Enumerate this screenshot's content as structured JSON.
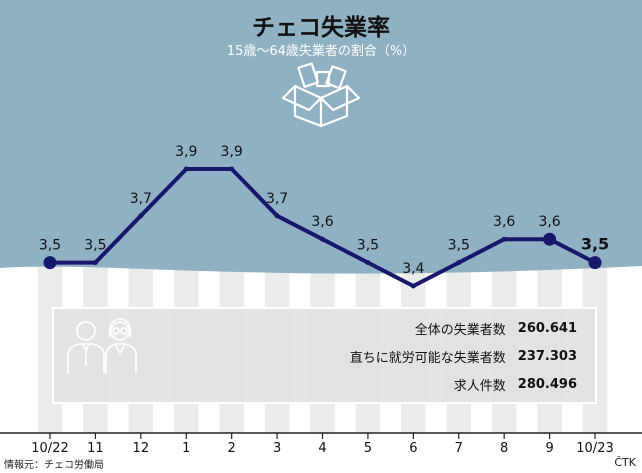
{
  "title": "チェコ失業率",
  "subtitle": "15歳～64歳失業者の割合（%）",
  "source": "情報元：チェコ労働局",
  "agency": "ČTK",
  "stats": [
    {
      "label": "全体の失業者数",
      "value": "260.641"
    },
    {
      "label": "直ちに就労可能な失業者数",
      "value": "237.303"
    },
    {
      "label": "求人件数",
      "value": "280.496"
    }
  ],
  "icons": [
    "box-icon",
    "people-icon"
  ],
  "colors": {
    "band": "#8fb1c3",
    "line": "#17176b",
    "columns": "#ebebeb"
  },
  "chart_data": {
    "type": "line",
    "categories": [
      "10/22",
      "11",
      "12",
      "1",
      "2",
      "3",
      "4",
      "5",
      "6",
      "7",
      "8",
      "9",
      "10/23"
    ],
    "series": [
      {
        "values": [
          3.5,
          3.5,
          3.7,
          3.9,
          3.9,
          3.7,
          3.6,
          3.5,
          3.4,
          3.5,
          3.6,
          3.6,
          3.5
        ]
      }
    ],
    "labels": [
      "3,5",
      "3,5",
      "3,7",
      "3,9",
      "3,9",
      "3,7",
      "3,6",
      "3,5",
      "3,4",
      "3,5",
      "3,6",
      "3,6",
      "3,5"
    ],
    "markers": [
      0,
      11,
      12
    ],
    "highlight_last": true,
    "title": "チェコ失業率",
    "xlabel": "",
    "ylabel": ""
  }
}
